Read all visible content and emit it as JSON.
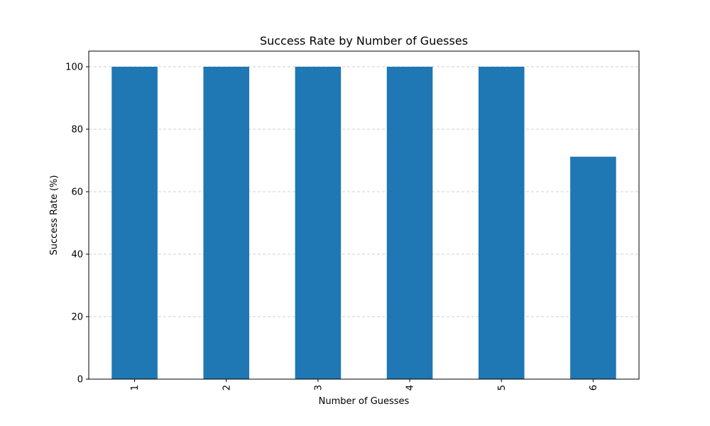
{
  "chart_data": {
    "type": "bar",
    "title": "Success Rate by Number of Guesses",
    "xlabel": "Number of Guesses",
    "ylabel": "Success Rate (%)",
    "categories": [
      "1",
      "2",
      "3",
      "4",
      "5",
      "6"
    ],
    "values": [
      100,
      100,
      100,
      100,
      100,
      71.2
    ],
    "ylim": [
      0,
      105
    ],
    "yticks": [
      0,
      20,
      40,
      60,
      80,
      100
    ],
    "grid": "y-dashed",
    "x_tick_rotation": "vertical",
    "bar_color": "#1f77b4",
    "grid_color": "#b0b0b0"
  }
}
